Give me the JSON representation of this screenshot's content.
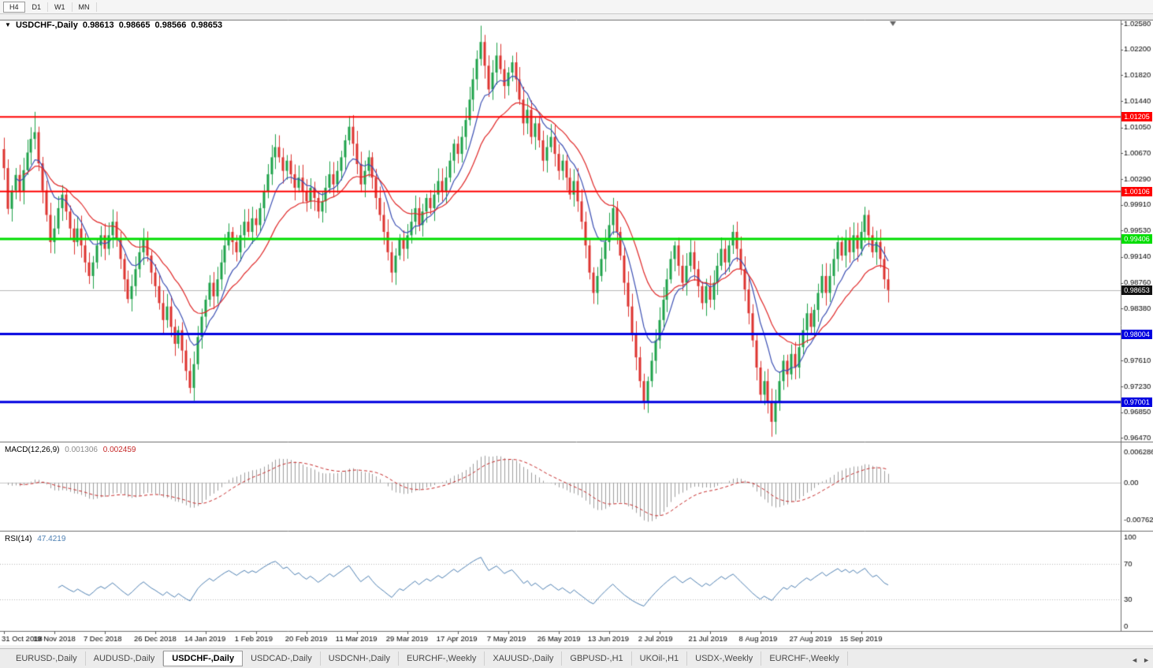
{
  "icons": {
    "chart_menu": "▼"
  },
  "timeframe_bar": {
    "items": [
      "H4",
      "D1",
      "W1",
      "MN"
    ],
    "active": "H4"
  },
  "bottom_tab_bar": {
    "tabs": [
      "EURUSD-,Daily",
      "AUDUSD-,Daily",
      "USDCHF-,Daily",
      "USDCAD-,Daily",
      "USDCNH-,Daily",
      "EURCHF-,Weekly",
      "XAUUSD-,Daily",
      "GBPUSD-,H1",
      "UKOil-,H1",
      "USDX-,Weekly",
      "EURCHF-,Weekly"
    ],
    "active_index": 2,
    "scroll_left_icon": "◄",
    "scroll_right_icon": "►"
  },
  "chart_data": {
    "type": "candlestick",
    "title": "USDCHF-,Daily",
    "ohlc_readout": {
      "open": "0.98613",
      "high": "0.98665",
      "low": "0.98566",
      "close": "0.98653"
    },
    "up_color": "#1fa24a",
    "down_color": "#dd3330",
    "ma_fast_color": "#3c50b4",
    "ma_slow_color": "#e02828",
    "price_axis": {
      "labels": [
        "1.02580",
        "1.02200",
        "1.01820",
        "1.01440",
        "1.01050",
        "1.00670",
        "1.00290",
        "0.99910",
        "0.99530",
        "0.99140",
        "0.98760",
        "0.98380",
        "0.97610",
        "0.97230",
        "0.96850",
        "0.96470"
      ],
      "values": [
        1.0258,
        1.022,
        1.0182,
        1.0144,
        1.0105,
        1.0067,
        1.0029,
        0.9991,
        0.9953,
        0.9914,
        0.9876,
        0.9838,
        0.9761,
        0.9723,
        0.9685,
        0.9647
      ],
      "min": 0.9647,
      "max": 1.0258
    },
    "time_axis": {
      "labels": [
        "31 Oct 2018",
        "19 Nov 2018",
        "7 Dec 2018",
        "26 Dec 2018",
        "14 Jan 2019",
        "1 Feb 2019",
        "20 Feb 2019",
        "11 Mar 2019",
        "29 Mar 2019",
        "17 Apr 2019",
        "7 May 2019",
        "26 May 2019",
        "13 Jun 2019",
        "2 Jul 2019",
        "21 Jul 2019",
        "8 Aug 2019",
        "27 Aug 2019",
        "15 Sep 2019"
      ],
      "bar_indices": [
        0,
        13,
        26,
        39,
        52,
        65,
        78,
        91,
        104,
        117,
        130,
        143,
        156,
        169,
        182,
        195,
        208,
        221
      ]
    },
    "horizontal_levels": [
      {
        "price": 1.01205,
        "label": "1.01205",
        "color": "#ff0000",
        "width": 2
      },
      {
        "price": 1.00106,
        "label": "1.00106",
        "color": "#ff0000",
        "width": 2
      },
      {
        "price": 0.99406,
        "label": "0.99406",
        "color": "#00dd00",
        "width": 3
      },
      {
        "price": 0.98004,
        "label": "0.98004",
        "color": "#0000e0",
        "width": 3
      },
      {
        "price": 0.97001,
        "label": "0.97001",
        "color": "#0000e0",
        "width": 3
      }
    ],
    "current_price": {
      "value": 0.98653,
      "label": "0.98653",
      "tag_color": "#111111",
      "line_color": "#b8b8b8"
    },
    "candles": {
      "closes": [
        1.0045,
        0.9985,
        1.0012,
        1.0035,
        1.001,
        1.0042,
        1.0068,
        1.0088,
        1.0098,
        1.0052,
        1.0012,
        0.9976,
        0.9936,
        0.9956,
        0.9986,
        1.0006,
        0.9981,
        0.9956,
        0.9936,
        0.9956,
        0.9931,
        0.9906,
        0.9886,
        0.9906,
        0.9931,
        0.9946,
        0.9926,
        0.9946,
        0.9966,
        0.9941,
        0.9911,
        0.9881,
        0.9852,
        0.9871,
        0.9896,
        0.9921,
        0.9941,
        0.9916,
        0.9891,
        0.9871,
        0.9846,
        0.9821,
        0.9841,
        0.9811,
        0.9786,
        0.9806,
        0.9776,
        0.9746,
        0.9721,
        0.9756,
        0.9796,
        0.9826,
        0.9851,
        0.9876,
        0.9856,
        0.9881,
        0.9906,
        0.9931,
        0.9951,
        0.9936,
        0.9921,
        0.9946,
        0.9966,
        0.9951,
        0.9971,
        0.9961,
        0.9986,
        1.0011,
        1.0036,
        1.0061,
        1.0076,
        1.0061,
        1.0041,
        1.0056,
        1.0036,
        1.0016,
        1.0031,
        1.0011,
        0.9996,
        1.0016,
        1.0001,
        0.9981,
        0.9996,
        1.0016,
        1.0036,
        1.0021,
        1.0041,
        1.0061,
        1.0086,
        1.0106,
        1.0081,
        1.0051,
        1.0021,
        1.0041,
        1.0061,
        1.0031,
        1.0001,
        0.9976,
        0.9951,
        0.9921,
        0.9891,
        0.9916,
        0.9941,
        0.9926,
        0.9946,
        0.9966,
        0.9986,
        0.9961,
        0.9981,
        1.0001,
        0.9986,
        1.0006,
        1.0026,
        1.0011,
        1.0031,
        1.0056,
        1.0081,
        1.0066,
        1.0091,
        1.0116,
        1.0146,
        1.0176,
        1.0206,
        1.0231,
        1.0196,
        1.0161,
        1.0186,
        1.0211,
        1.0191,
        1.0166,
        1.0186,
        1.0201,
        1.0176,
        1.0146,
        1.0111,
        1.0131,
        1.0091,
        1.0111,
        1.0086,
        1.0056,
        1.0076,
        1.0091,
        1.0066,
        1.0041,
        1.0056,
        1.0031,
        1.0006,
        1.0026,
        0.9996,
        0.9966,
        0.9931,
        0.9891,
        0.9861,
        0.9886,
        0.9911,
        0.9936,
        0.9961,
        0.9986,
        0.9951,
        0.9916,
        0.9876,
        0.9841,
        0.9801,
        0.9766,
        0.9731,
        0.9701,
        0.9731,
        0.9761,
        0.9791,
        0.9821,
        0.9851,
        0.9881,
        0.9911,
        0.9931,
        0.9901,
        0.9876,
        0.9901,
        0.9921,
        0.9896,
        0.9871,
        0.9846,
        0.9871,
        0.9851,
        0.9876,
        0.9901,
        0.9926,
        0.9906,
        0.9931,
        0.9951,
        0.9926,
        0.9896,
        0.9866,
        0.9831,
        0.9791,
        0.9751,
        0.9711,
        0.9731,
        0.9701,
        0.9671,
        0.9701,
        0.9731,
        0.9761,
        0.9741,
        0.9771,
        0.9751,
        0.9781,
        0.9806,
        0.9831,
        0.9811,
        0.9836,
        0.9861,
        0.9886,
        0.9861,
        0.9886,
        0.9911,
        0.9936,
        0.9916,
        0.9941,
        0.9921,
        0.9946,
        0.9926,
        0.9951,
        0.9976,
        0.9946,
        0.9921,
        0.9936,
        0.9911,
        0.9881,
        0.98653
      ],
      "wick_overrides": {
        "8": {
          "high": 1.0128
        },
        "48": {
          "low": 0.9713
        },
        "89": {
          "high": 1.0122
        },
        "123": {
          "high": 1.0255
        },
        "165": {
          "low": 0.9689
        },
        "198": {
          "low": 0.9649
        },
        "222": {
          "high": 0.9988
        }
      }
    },
    "indicators": {
      "macd": {
        "name_label": "MACD(12,26,9)",
        "value_main": "0.001306",
        "value_signal": "0.002459",
        "axis_labels": [
          "0.006286",
          "0.00",
          "-0.00762"
        ],
        "axis_values": [
          0.006286,
          0,
          -0.00762
        ],
        "histogram_color": "#9e9e9e",
        "signal_color": "#c62828"
      },
      "rsi": {
        "name_label": "RSI(14)",
        "value": "47.4219",
        "axis_labels": [
          "100",
          "70",
          "30",
          "0"
        ],
        "axis_values": [
          100,
          70,
          30,
          0
        ],
        "level_lines": [
          70,
          30
        ],
        "line_color": "#4f81b3"
      }
    }
  }
}
